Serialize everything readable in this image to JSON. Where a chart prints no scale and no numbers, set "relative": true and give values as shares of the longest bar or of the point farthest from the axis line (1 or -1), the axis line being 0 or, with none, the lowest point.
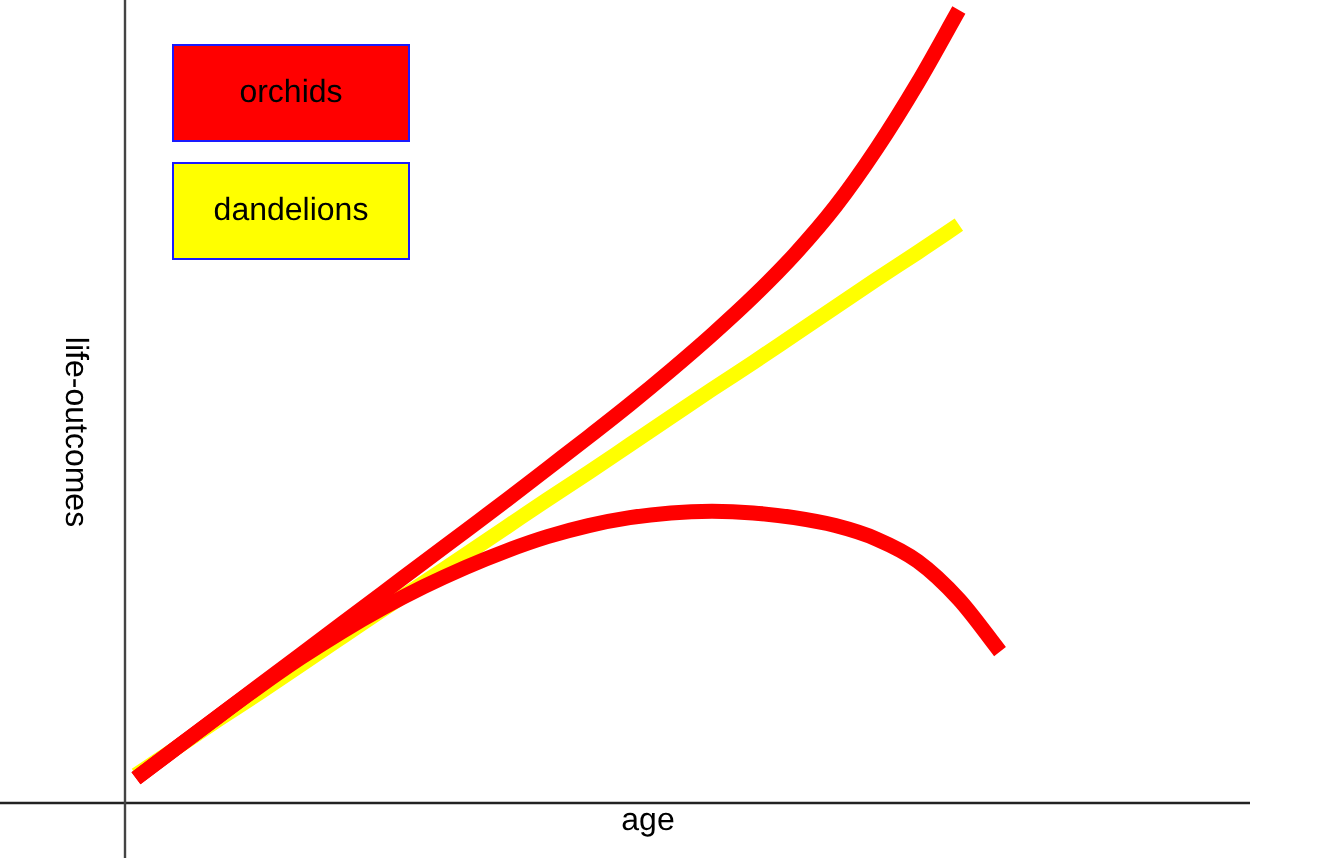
{
  "chart_data": {
    "type": "line",
    "relative": true,
    "xlabel": "age",
    "ylabel": "life-outcomes",
    "legend": "top left",
    "categories": [
      null,
      null,
      null,
      null,
      null,
      null,
      null,
      null,
      null,
      null,
      null,
      null,
      null,
      null,
      null,
      null,
      null,
      null,
      null,
      null,
      null,
      null
    ],
    "series": [
      {
        "name": "orchids",
        "color": "#ff0000",
        "values": [
          0.03,
          0.069,
          0.108,
          0.147,
          0.186,
          0.225,
          0.264,
          0.303,
          0.342,
          0.381,
          0.421,
          0.461,
          0.502,
          0.545,
          0.59,
          0.638,
          0.691,
          0.752,
          0.825,
          0.908,
          1,
          null
        ]
      },
      {
        "color": "#ff0000",
        "values": [
          0.03,
          0.069,
          0.108,
          0.146,
          0.182,
          0.215,
          0.245,
          0.272,
          0.296,
          0.317,
          0.335,
          0.349,
          0.359,
          0.365,
          0.367,
          0.365,
          0.359,
          0.349,
          0.332,
          0.304,
          0.256,
          0.19
        ]
      },
      {
        "name": "dandelions",
        "color": "#ffff00",
        "values": [
          0.034,
          0.069,
          0.104,
          0.138,
          0.173,
          0.208,
          0.243,
          0.277,
          0.312,
          0.347,
          0.382,
          0.416,
          0.451,
          0.486,
          0.521,
          0.555,
          0.59,
          0.625,
          0.66,
          0.694,
          0.729,
          null
        ]
      }
    ]
  }
}
